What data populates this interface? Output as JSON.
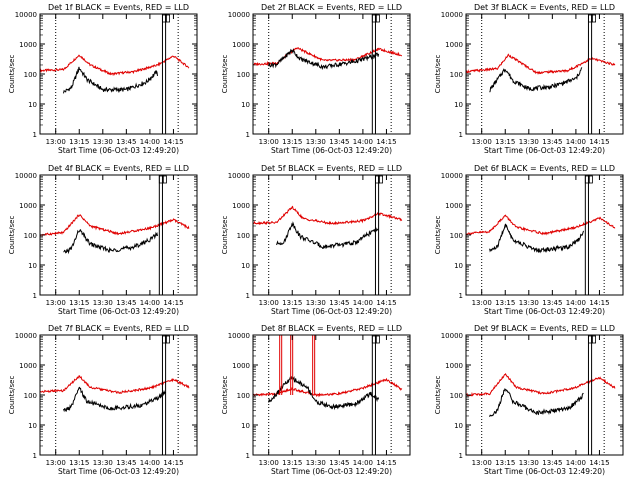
{
  "colors": {
    "events": "#000000",
    "lld": "#e00000",
    "background": "#ffffff",
    "axes": "#000000"
  },
  "chart_data": {
    "type": "line",
    "layout": "3x3 grid of panels",
    "scale": "log-y",
    "ylim": [
      1,
      10000
    ],
    "ylabel": "Counts/sec",
    "xlabel": "Start Time (06-Oct-03 12:49:20)",
    "x_ticks": [
      "13:00",
      "13:15",
      "13:30",
      "13:45",
      "14:00",
      "14:15"
    ],
    "y_ticks": [
      "1",
      "10",
      "100",
      "1000",
      "10000"
    ],
    "series_legend": "BLACK = Events, RED = LLD",
    "panels": [
      {
        "title": "Det 1f BLACK = Events, RED = LLD",
        "events": {
          "x": [
            "13:05",
            "13:10",
            "13:15",
            "13:20",
            "13:30",
            "13:45",
            "13:58",
            "14:04",
            "14:05"
          ],
          "y": [
            25,
            35,
            160,
            65,
            30,
            30,
            55,
            115,
            95
          ]
        },
        "lld": {
          "x": [
            "12:50",
            "13:05",
            "13:15",
            "13:22",
            "13:35",
            "13:50",
            "14:05",
            "14:15",
            "14:25"
          ],
          "y": [
            130,
            140,
            430,
            200,
            100,
            120,
            200,
            400,
            160
          ]
        },
        "flags": [
          "14:08",
          "14:10"
        ]
      },
      {
        "title": "Det 2f BLACK = Events, RED = LLD",
        "events": {
          "x": [
            "13:00",
            "13:05",
            "13:15",
            "13:20",
            "13:35",
            "13:55",
            "14:10"
          ],
          "y": [
            200,
            210,
            620,
            320,
            170,
            260,
            440
          ]
        },
        "lld": {
          "x": [
            "12:50",
            "13:05",
            "13:18",
            "13:35",
            "13:55",
            "14:10",
            "14:25"
          ],
          "y": [
            210,
            230,
            750,
            280,
            300,
            680,
            420
          ]
        },
        "flags": [
          "14:06",
          "14:08"
        ]
      },
      {
        "title": "Det 3f BLACK = Events, RED = LLD",
        "events": {
          "x": [
            "13:05",
            "13:15",
            "13:20",
            "13:30",
            "13:45",
            "14:00",
            "14:04"
          ],
          "y": [
            28,
            150,
            60,
            32,
            38,
            70,
            160
          ]
        },
        "lld": {
          "x": [
            "12:50",
            "13:10",
            "13:17",
            "13:35",
            "13:55",
            "14:10",
            "14:25"
          ],
          "y": [
            120,
            150,
            430,
            110,
            130,
            330,
            200
          ]
        },
        "flags": [
          "14:08",
          "14:10"
        ]
      },
      {
        "title": "Det 4f BLACK = Events, RED = LLD",
        "events": {
          "x": [
            "13:05",
            "13:10",
            "13:15",
            "13:22",
            "13:35",
            "13:50",
            "14:00",
            "14:05"
          ],
          "y": [
            25,
            35,
            150,
            50,
            30,
            40,
            70,
            110
          ]
        },
        "lld": {
          "x": [
            "12:50",
            "13:05",
            "13:15",
            "13:22",
            "13:40",
            "14:00",
            "14:15",
            "14:25"
          ],
          "y": [
            100,
            120,
            480,
            200,
            110,
            170,
            320,
            170
          ]
        },
        "flags": [
          "14:06",
          "14:08"
        ]
      },
      {
        "title": "Det 5f BLACK = Events, RED = LLD",
        "events": {
          "x": [
            "13:05",
            "13:10",
            "13:15",
            "13:20",
            "13:35",
            "13:55",
            "14:05",
            "14:10"
          ],
          "y": [
            50,
            60,
            250,
            90,
            40,
            55,
            120,
            170
          ]
        },
        "lld": {
          "x": [
            "12:50",
            "13:05",
            "13:15",
            "13:22",
            "13:40",
            "14:00",
            "14:10",
            "14:25"
          ],
          "y": [
            250,
            260,
            850,
            350,
            240,
            300,
            520,
            320
          ]
        },
        "flags": [
          "14:08",
          "14:10"
        ]
      },
      {
        "title": "Det 6f BLACK = Events, RED = LLD",
        "events": {
          "x": [
            "13:05",
            "13:10",
            "13:15",
            "13:20",
            "13:35",
            "13:55",
            "14:02",
            "14:05"
          ],
          "y": [
            30,
            40,
            220,
            70,
            30,
            40,
            75,
            140
          ]
        },
        "lld": {
          "x": [
            "12:50",
            "13:05",
            "13:15",
            "13:22",
            "13:40",
            "14:00",
            "14:15",
            "14:25"
          ],
          "y": [
            110,
            130,
            450,
            180,
            110,
            180,
            370,
            170
          ]
        },
        "flags": [
          "14:06",
          "14:08"
        ]
      },
      {
        "title": "Det 7f BLACK = Events, RED = LLD",
        "events": {
          "x": [
            "13:05",
            "13:10",
            "13:15",
            "13:20",
            "13:35",
            "13:55",
            "14:05",
            "14:10"
          ],
          "y": [
            30,
            40,
            170,
            60,
            35,
            45,
            80,
            120
          ]
        },
        "lld": {
          "x": [
            "12:50",
            "13:05",
            "13:15",
            "13:22",
            "13:40",
            "14:00",
            "14:15",
            "14:25"
          ],
          "y": [
            130,
            140,
            430,
            180,
            120,
            170,
            330,
            180
          ]
        },
        "flags": [
          "14:08",
          "14:10"
        ]
      },
      {
        "title": "Det 8f BLACK = Events, RED = LLD",
        "events": {
          "x": [
            "13:00",
            "13:05",
            "13:10",
            "13:15",
            "13:25",
            "13:30",
            "13:40",
            "13:55",
            "14:05",
            "14:10"
          ],
          "y": [
            60,
            110,
            230,
            360,
            170,
            60,
            40,
            50,
            110,
            70
          ]
        },
        "lld": {
          "x": [
            "12:50",
            "13:05",
            "13:15",
            "13:30",
            "13:45",
            "14:00",
            "14:15",
            "14:25"
          ],
          "y": [
            100,
            110,
            160,
            100,
            110,
            170,
            330,
            150
          ]
        },
        "spikes": [
          "13:07",
          "13:14",
          "13:28"
        ],
        "flags": [
          "14:06",
          "14:08"
        ]
      },
      {
        "title": "Det 9f BLACK = Events, RED = LLD",
        "events": {
          "x": [
            "13:05",
            "13:10",
            "13:15",
            "13:20",
            "13:35",
            "13:55",
            "14:02",
            "14:05"
          ],
          "y": [
            20,
            30,
            180,
            60,
            25,
            35,
            70,
            110
          ]
        },
        "lld": {
          "x": [
            "12:50",
            "13:05",
            "13:15",
            "13:22",
            "13:40",
            "14:00",
            "14:15",
            "14:25"
          ],
          "y": [
            100,
            110,
            500,
            180,
            110,
            180,
            380,
            170
          ]
        },
        "flags": [
          "14:08",
          "14:10"
        ]
      }
    ]
  }
}
